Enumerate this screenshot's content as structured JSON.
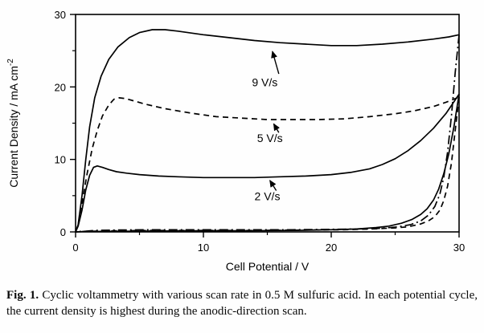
{
  "figure": {
    "caption_label": "Fig. 1.",
    "caption_text": " Cyclic voltammetry with various scan rate in 0.5 M sulfuric acid. In each potential cycle, the current density is highest during the anodic-direction scan."
  },
  "chart_data": {
    "type": "line",
    "title": "",
    "xlabel": "Cell Potential / V",
    "ylabel": "Current Density / mA cm",
    "ylabel_sup": "-2",
    "xlim": [
      0,
      30
    ],
    "ylim": [
      0,
      30
    ],
    "xticks": [
      0,
      10,
      20,
      30
    ],
    "yticks": [
      0,
      10,
      20,
      30
    ],
    "xminor": [
      5,
      15,
      25
    ],
    "yminor": [
      5,
      15,
      25
    ],
    "grid": "off",
    "legend": "inline-annotations",
    "line_color": "#000000",
    "series": [
      {
        "name": "9 V/s anodic",
        "scan_rate": "9 V/s",
        "dash": "solid",
        "points": [
          [
            0,
            0
          ],
          [
            0.2,
            1
          ],
          [
            0.5,
            5
          ],
          [
            0.8,
            10
          ],
          [
            1.1,
            14.5
          ],
          [
            1.5,
            18.5
          ],
          [
            2,
            21.5
          ],
          [
            2.6,
            23.8
          ],
          [
            3.3,
            25.5
          ],
          [
            4.2,
            26.8
          ],
          [
            5,
            27.5
          ],
          [
            6,
            27.9
          ],
          [
            7,
            27.9
          ],
          [
            8,
            27.7
          ],
          [
            10,
            27.2
          ],
          [
            12,
            26.8
          ],
          [
            14,
            26.4
          ],
          [
            16,
            26.1
          ],
          [
            18,
            25.9
          ],
          [
            20,
            25.7
          ],
          [
            22,
            25.7
          ],
          [
            24,
            25.9
          ],
          [
            26,
            26.2
          ],
          [
            28,
            26.6
          ],
          [
            29.2,
            26.9
          ],
          [
            30,
            27.2
          ]
        ]
      },
      {
        "name": "9 V/s cathodic",
        "scan_rate": "9 V/s",
        "dash": "dashdot",
        "points": [
          [
            30,
            27.2
          ],
          [
            29.7,
            22
          ],
          [
            29.4,
            16
          ],
          [
            29.1,
            11
          ],
          [
            28.8,
            7.5
          ],
          [
            28.5,
            5.2
          ],
          [
            28.1,
            3.5
          ],
          [
            27.6,
            2.3
          ],
          [
            27,
            1.5
          ],
          [
            26.2,
            1
          ],
          [
            25.2,
            0.7
          ],
          [
            24,
            0.5
          ],
          [
            22,
            0.4
          ],
          [
            20,
            0.35
          ],
          [
            17,
            0.3
          ],
          [
            14,
            0.3
          ],
          [
            10,
            0.3
          ],
          [
            6,
            0.3
          ],
          [
            3,
            0.25
          ],
          [
            1.5,
            0.2
          ],
          [
            0.8,
            0.1
          ],
          [
            0.3,
            0.05
          ],
          [
            0,
            0
          ]
        ]
      },
      {
        "name": "5 V/s anodic",
        "scan_rate": "5 V/s",
        "dash": "dashed",
        "points": [
          [
            0,
            0
          ],
          [
            0.2,
            1
          ],
          [
            0.5,
            4
          ],
          [
            0.9,
            8
          ],
          [
            1.3,
            11.5
          ],
          [
            1.7,
            14
          ],
          [
            2.1,
            16
          ],
          [
            2.6,
            17.5
          ],
          [
            3,
            18.3
          ],
          [
            3.4,
            18.5
          ],
          [
            3.9,
            18.4
          ],
          [
            4.5,
            18.1
          ],
          [
            5.5,
            17.6
          ],
          [
            7,
            17
          ],
          [
            9,
            16.4
          ],
          [
            11,
            15.9
          ],
          [
            13,
            15.7
          ],
          [
            15,
            15.5
          ],
          [
            17,
            15.5
          ],
          [
            19,
            15.5
          ],
          [
            21,
            15.6
          ],
          [
            23,
            15.9
          ],
          [
            25,
            16.3
          ],
          [
            26.5,
            16.7
          ],
          [
            28,
            17.3
          ],
          [
            29,
            17.9
          ],
          [
            30,
            18.6
          ]
        ]
      },
      {
        "name": "5 V/s cathodic",
        "scan_rate": "5 V/s",
        "dash": "dashed",
        "points": [
          [
            30,
            18.6
          ],
          [
            29.7,
            14
          ],
          [
            29.4,
            9.5
          ],
          [
            29.1,
            6.3
          ],
          [
            28.8,
            4.3
          ],
          [
            28.5,
            3
          ],
          [
            28.1,
            2.1
          ],
          [
            27.6,
            1.5
          ],
          [
            27,
            1.1
          ],
          [
            26,
            0.7
          ],
          [
            25,
            0.55
          ],
          [
            23,
            0.4
          ],
          [
            21,
            0.3
          ],
          [
            18,
            0.25
          ],
          [
            14,
            0.2
          ],
          [
            10,
            0.2
          ],
          [
            6,
            0.2
          ],
          [
            3,
            0.15
          ],
          [
            1.5,
            0.1
          ],
          [
            0.5,
            0.05
          ],
          [
            0,
            0
          ]
        ]
      },
      {
        "name": "2 V/s anodic",
        "scan_rate": "2 V/s",
        "dash": "solid",
        "points": [
          [
            0,
            0
          ],
          [
            0.2,
            0.8
          ],
          [
            0.5,
            3
          ],
          [
            0.8,
            5.8
          ],
          [
            1.1,
            7.8
          ],
          [
            1.4,
            8.9
          ],
          [
            1.7,
            9.1
          ],
          [
            2.1,
            8.9
          ],
          [
            2.6,
            8.6
          ],
          [
            3.2,
            8.3
          ],
          [
            4,
            8.1
          ],
          [
            5,
            7.9
          ],
          [
            6.5,
            7.7
          ],
          [
            8,
            7.6
          ],
          [
            10,
            7.5
          ],
          [
            12,
            7.5
          ],
          [
            14,
            7.5
          ],
          [
            16,
            7.6
          ],
          [
            18,
            7.7
          ],
          [
            20,
            7.9
          ],
          [
            21.5,
            8.2
          ],
          [
            23,
            8.7
          ],
          [
            24,
            9.3
          ],
          [
            25,
            10.1
          ],
          [
            26,
            11.2
          ],
          [
            27,
            12.6
          ],
          [
            28,
            14.3
          ],
          [
            29,
            16.4
          ],
          [
            30,
            19
          ]
        ]
      },
      {
        "name": "2 V/s cathodic",
        "scan_rate": "2 V/s",
        "dash": "solid",
        "points": [
          [
            30,
            19
          ],
          [
            29.6,
            14.5
          ],
          [
            29.2,
            10.8
          ],
          [
            28.8,
            8
          ],
          [
            28.4,
            5.9
          ],
          [
            28,
            4.4
          ],
          [
            27.5,
            3.2
          ],
          [
            27,
            2.4
          ],
          [
            26.3,
            1.7
          ],
          [
            25.5,
            1.2
          ],
          [
            24.5,
            0.8
          ],
          [
            23.5,
            0.6
          ],
          [
            22,
            0.4
          ],
          [
            20,
            0.3
          ],
          [
            17,
            0.2
          ],
          [
            13,
            0.15
          ],
          [
            9,
            0.15
          ],
          [
            5,
            0.1
          ],
          [
            2,
            0.08
          ],
          [
            0.5,
            0.03
          ],
          [
            0,
            0
          ]
        ]
      }
    ],
    "annotations": [
      {
        "label": "9 V/s",
        "text_xy": [
          14.8,
          20.1
        ],
        "arrow_from": [
          15.9,
          21.8
        ],
        "arrow_to": [
          15.4,
          24.9
        ]
      },
      {
        "label": "5 V/s",
        "text_xy": [
          15.2,
          12.4
        ],
        "arrow_from": [
          15.9,
          13.7
        ],
        "arrow_to": [
          15.5,
          14.9
        ]
      },
      {
        "label": "2 V/s",
        "text_xy": [
          15.0,
          4.4
        ],
        "arrow_from": [
          15.7,
          5.7
        ],
        "arrow_to": [
          15.2,
          7.1
        ]
      }
    ]
  }
}
